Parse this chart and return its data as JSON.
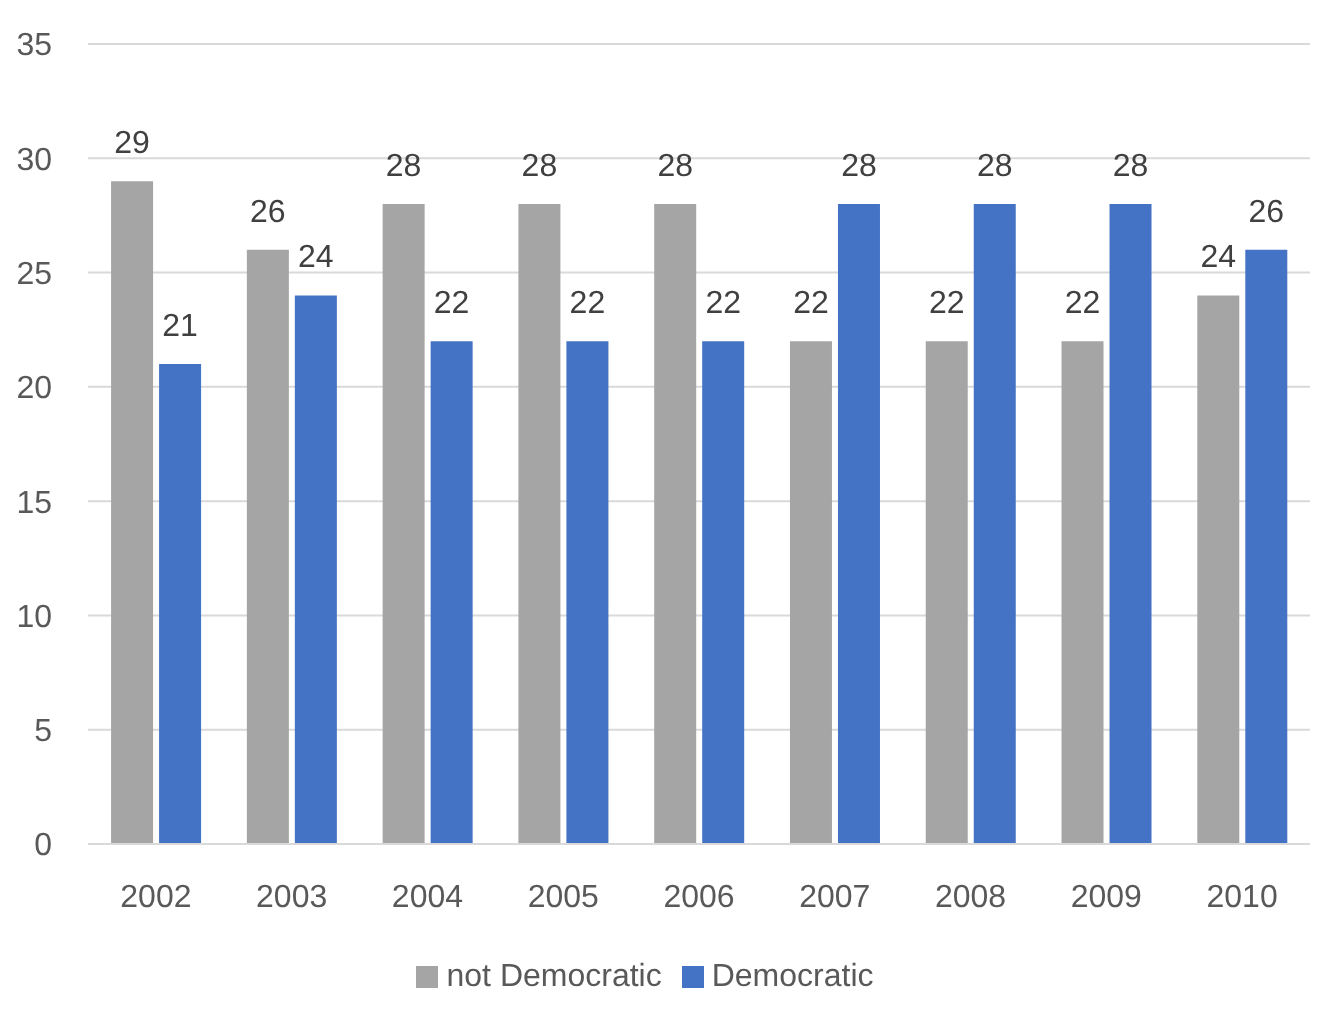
{
  "chart_data": {
    "type": "bar",
    "categories": [
      "2002",
      "2003",
      "2004",
      "2005",
      "2006",
      "2007",
      "2008",
      "2009",
      "2010"
    ],
    "series": [
      {
        "name": "not Democratic",
        "color": "#a5a5a5",
        "values": [
          29,
          26,
          28,
          28,
          28,
          22,
          22,
          22,
          24
        ]
      },
      {
        "name": "Democratic",
        "color": "#4472c4",
        "values": [
          21,
          24,
          22,
          22,
          22,
          28,
          28,
          28,
          26
        ]
      }
    ],
    "ylim": [
      0,
      35
    ],
    "yticks": [
      0,
      5,
      10,
      15,
      20,
      25,
      30,
      35
    ],
    "grid": "y",
    "legend": "bottom",
    "data_labels": true
  }
}
